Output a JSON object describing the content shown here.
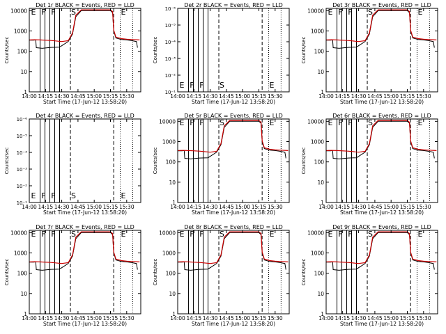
{
  "chart_data": [
    {
      "type": "line",
      "title": "Det 1r BLACK = Events, RED = LLD",
      "y_mode": "log-counts",
      "markers": [
        "E",
        "F",
        "F",
        "S",
        "E"
      ]
    },
    {
      "type": "line",
      "title": "Det 2r BLACK = Events, RED = LLD",
      "y_mode": "log-tiny",
      "markers": [
        "E",
        "F",
        "F",
        "S",
        "E"
      ]
    },
    {
      "type": "line",
      "title": "Det 3r BLACK = Events, RED = LLD",
      "y_mode": "log-counts",
      "markers": [
        "E",
        "F",
        "F",
        "S",
        "E"
      ]
    },
    {
      "type": "line",
      "title": "Det 4r BLACK = Events, RED = LLD",
      "y_mode": "log-tiny",
      "markers": [
        "E",
        "F",
        "F",
        "S",
        "E"
      ]
    },
    {
      "type": "line",
      "title": "Det 5r BLACK = Events, RED = LLD",
      "y_mode": "log-counts",
      "markers": [
        "E",
        "F",
        "F",
        "S",
        "E"
      ]
    },
    {
      "type": "line",
      "title": "Det 6r BLACK = Events, RED = LLD",
      "y_mode": "log-counts",
      "markers": [
        "E",
        "F",
        "F",
        "S",
        "E"
      ]
    },
    {
      "type": "line",
      "title": "Det 7r BLACK = Events, RED = LLD",
      "y_mode": "log-counts",
      "markers": [
        "E",
        "F",
        "F",
        "S",
        "E"
      ]
    },
    {
      "type": "line",
      "title": "Det 8r BLACK = Events, RED = LLD",
      "y_mode": "log-counts",
      "markers": [
        "E",
        "F",
        "F",
        "S",
        "E"
      ]
    },
    {
      "type": "line",
      "title": "Det 9r BLACK = Events, RED = LLD",
      "y_mode": "log-counts",
      "markers": [
        "E",
        "F",
        "F",
        "S",
        "E"
      ]
    }
  ],
  "shared": {
    "xlabel": "Start Time (17-Jun-12 13:58:20)",
    "ylabel": "Counts/sec",
    "x_ticks": [
      "14:00",
      "14:15",
      "14:30",
      "14:45",
      "15:00",
      "15:15",
      "15:30"
    ],
    "x_tick_minutes": [
      0,
      15,
      30,
      45,
      60,
      75,
      90
    ],
    "x_range_minutes": [
      0,
      103
    ],
    "y_ticks_counts": [
      "1",
      "10",
      "100",
      "1000",
      "10000"
    ],
    "y_ticks_tiny": [
      "10⁻¹",
      "10⁻²",
      "10⁻³",
      "10⁻⁴",
      "10⁻⁵",
      "10⁻⁶"
    ],
    "solid_line_minutes": [
      10,
      14.5,
      19,
      23.5,
      28
    ],
    "dashed_line_minutes": [
      38,
      78
    ],
    "dotted_line_minutes": [
      84,
      95.5
    ],
    "marker_minutes": [
      1,
      10.5,
      19.5,
      38,
      84
    ],
    "colors": {
      "events": "#000000",
      "lld": "#cc0000"
    },
    "events_series": {
      "x": [
        0,
        4,
        6,
        6.5,
        12,
        20,
        28,
        36,
        40,
        43,
        48,
        55,
        60,
        66,
        72,
        75,
        77,
        78,
        80,
        85,
        90,
        95,
        99,
        100
      ],
      "y": [
        350,
        350,
        360,
        150,
        140,
        155,
        160,
        300,
        700,
        5000,
        10000,
        10000,
        10000,
        10000,
        10000,
        10000,
        8000,
        1000,
        450,
        380,
        360,
        330,
        300,
        150
      ]
    },
    "lld_series": {
      "x": [
        0,
        5,
        10,
        20,
        30,
        36,
        40,
        43,
        48,
        55,
        60,
        66,
        72,
        75,
        77,
        78,
        80,
        85,
        90,
        95,
        99,
        102
      ],
      "y": [
        360,
        370,
        360,
        340,
        300,
        330,
        800,
        6000,
        11000,
        11000,
        11000,
        11000,
        11000,
        11000,
        9000,
        1100,
        500,
        420,
        390,
        380,
        370,
        360
      ]
    }
  }
}
